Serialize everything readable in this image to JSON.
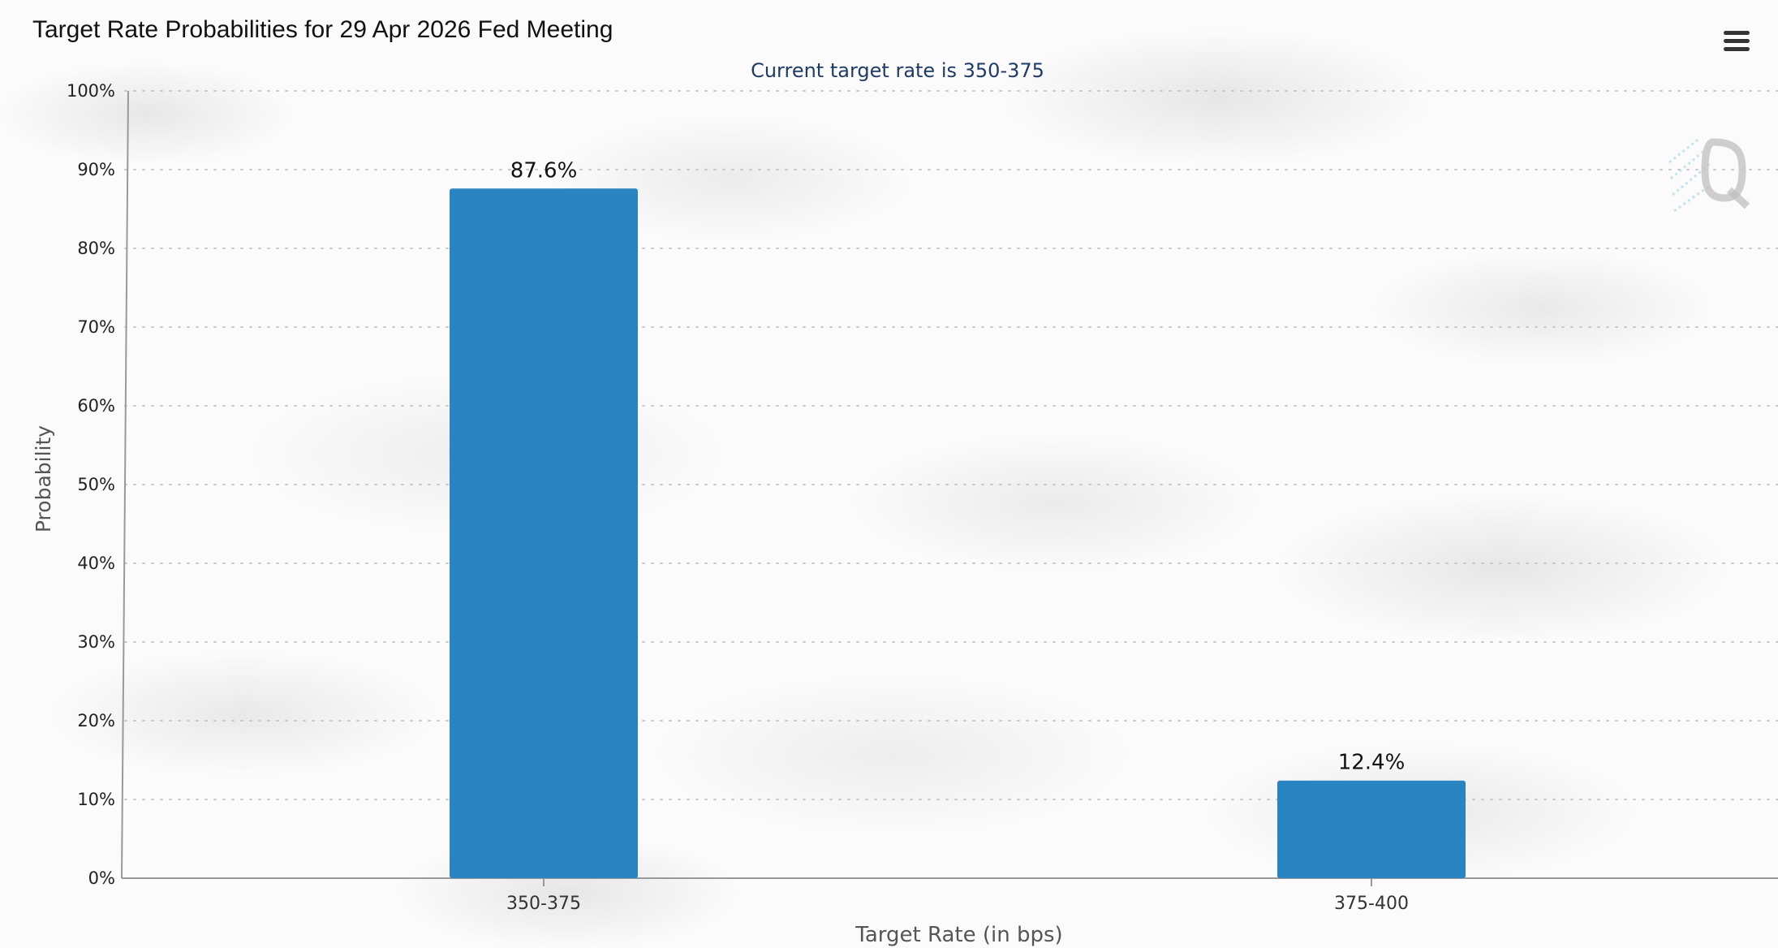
{
  "title": "Target Rate Probabilities for 29 Apr 2026 Fed Meeting",
  "menu": {
    "icon": "hamburger-menu-icon"
  },
  "watermark": {
    "icon": "q-logo-icon"
  },
  "colors": {
    "bar": "#2a84c2",
    "subtitle": "#1f3b66",
    "grid": "#c8c8c8",
    "axis": "#999999",
    "text": "#222222"
  },
  "chart_data": {
    "type": "bar",
    "title": "Target Rate Probabilities for 29 Apr 2026 Fed Meeting",
    "subtitle": "Current target rate is 350-375",
    "categories": [
      "350-375",
      "375-400"
    ],
    "values": [
      87.6,
      12.4
    ],
    "data_labels": [
      "87.6%",
      "12.4%"
    ],
    "xlabel": "Target Rate (in bps)",
    "ylabel": "Probability",
    "ylim": [
      0,
      100
    ],
    "y_ticks": [
      "0%",
      "10%",
      "20%",
      "30%",
      "40%",
      "50%",
      "60%",
      "70%",
      "80%",
      "90%",
      "100%"
    ],
    "grid": true,
    "legend": "none"
  }
}
